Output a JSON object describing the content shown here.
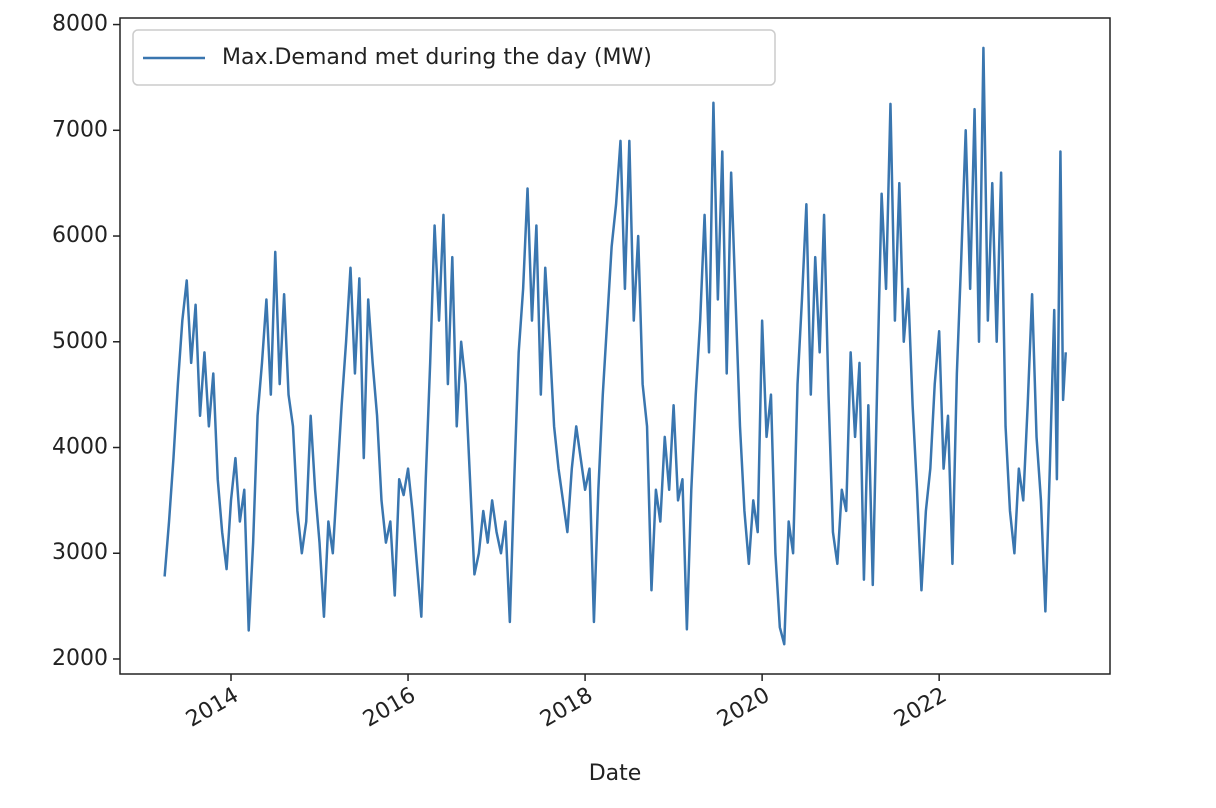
{
  "chart_data": {
    "type": "line",
    "xlabel": "Date",
    "x": [
      2013.25,
      2013.3,
      2013.35,
      2013.4,
      2013.45,
      2013.5,
      2013.55,
      2013.6,
      2013.65,
      2013.7,
      2013.75,
      2013.8,
      2013.85,
      2013.9,
      2013.95,
      2014.0,
      2014.05,
      2014.1,
      2014.15,
      2014.2,
      2014.25,
      2014.3,
      2014.35,
      2014.4,
      2014.45,
      2014.5,
      2014.55,
      2014.6,
      2014.65,
      2014.7,
      2014.75,
      2014.8,
      2014.85,
      2014.9,
      2014.95,
      2015.0,
      2015.05,
      2015.1,
      2015.15,
      2015.2,
      2015.25,
      2015.3,
      2015.35,
      2015.4,
      2015.45,
      2015.5,
      2015.55,
      2015.6,
      2015.65,
      2015.7,
      2015.75,
      2015.8,
      2015.85,
      2015.9,
      2015.95,
      2016.0,
      2016.05,
      2016.1,
      2016.15,
      2016.2,
      2016.25,
      2016.3,
      2016.35,
      2016.4,
      2016.45,
      2016.5,
      2016.55,
      2016.6,
      2016.65,
      2016.7,
      2016.75,
      2016.8,
      2016.85,
      2016.9,
      2016.95,
      2017.0,
      2017.05,
      2017.1,
      2017.15,
      2017.2,
      2017.25,
      2017.3,
      2017.35,
      2017.4,
      2017.45,
      2017.5,
      2017.55,
      2017.6,
      2017.65,
      2017.7,
      2017.75,
      2017.8,
      2017.85,
      2017.9,
      2017.95,
      2018.0,
      2018.05,
      2018.1,
      2018.15,
      2018.2,
      2018.25,
      2018.3,
      2018.35,
      2018.4,
      2018.45,
      2018.5,
      2018.55,
      2018.6,
      2018.65,
      2018.7,
      2018.75,
      2018.8,
      2018.85,
      2018.9,
      2018.95,
      2019.0,
      2019.05,
      2019.1,
      2019.15,
      2019.2,
      2019.25,
      2019.3,
      2019.35,
      2019.4,
      2019.45,
      2019.5,
      2019.55,
      2019.6,
      2019.65,
      2019.7,
      2019.75,
      2019.8,
      2019.85,
      2019.9,
      2019.95,
      2020.0,
      2020.05,
      2020.1,
      2020.15,
      2020.2,
      2020.25,
      2020.3,
      2020.35,
      2020.4,
      2020.45,
      2020.5,
      2020.55,
      2020.6,
      2020.65,
      2020.7,
      2020.75,
      2020.8,
      2020.85,
      2020.9,
      2020.95,
      2021.0,
      2021.05,
      2021.1,
      2021.15,
      2021.2,
      2021.25,
      2021.3,
      2021.35,
      2021.4,
      2021.45,
      2021.5,
      2021.55,
      2021.6,
      2021.65,
      2021.7,
      2021.75,
      2021.8,
      2021.85,
      2021.9,
      2021.95,
      2022.0,
      2022.05,
      2022.1,
      2022.15,
      2022.2,
      2022.25,
      2022.3,
      2022.35,
      2022.4,
      2022.45,
      2022.5,
      2022.55,
      2022.6,
      2022.65,
      2022.7,
      2022.75,
      2022.8,
      2022.85,
      2022.9,
      2022.95,
      2023.0,
      2023.05,
      2023.1,
      2023.15,
      2023.2,
      2023.25,
      2023.3,
      2023.33,
      2023.37,
      2023.4,
      2023.43
    ],
    "series": [
      {
        "name": "Max.Demand met during the day (MW)",
        "color": "#3a76af",
        "values": [
          2780,
          3300,
          3900,
          4600,
          5200,
          5580,
          4800,
          5350,
          4300,
          4900,
          4200,
          4700,
          3700,
          3200,
          2850,
          3500,
          3900,
          3300,
          3600,
          2270,
          3100,
          4300,
          4800,
          5400,
          4500,
          5850,
          4600,
          5450,
          4500,
          4200,
          3400,
          3000,
          3300,
          4300,
          3600,
          3100,
          2400,
          3300,
          3000,
          3700,
          4400,
          5000,
          5700,
          4700,
          5600,
          3900,
          5400,
          4800,
          4300,
          3500,
          3100,
          3300,
          2600,
          3700,
          3550,
          3800,
          3400,
          2900,
          2400,
          3700,
          4800,
          6100,
          5200,
          6200,
          4600,
          5800,
          4200,
          5000,
          4600,
          3700,
          2800,
          3000,
          3400,
          3100,
          3500,
          3200,
          3000,
          3300,
          2350,
          3700,
          4900,
          5500,
          6450,
          5200,
          6100,
          4500,
          5700,
          5000,
          4200,
          3800,
          3500,
          3200,
          3800,
          4200,
          3900,
          3600,
          3800,
          2350,
          3600,
          4500,
          5200,
          5900,
          6300,
          6900,
          5500,
          6900,
          5200,
          6000,
          4600,
          4200,
          2650,
          3600,
          3300,
          4100,
          3600,
          4400,
          3500,
          3700,
          2280,
          3600,
          4500,
          5200,
          6200,
          4900,
          7260,
          5400,
          6800,
          4700,
          6600,
          5400,
          4200,
          3400,
          2900,
          3500,
          3200,
          5200,
          4100,
          4500,
          3000,
          2300,
          2140,
          3300,
          3000,
          4600,
          5400,
          6300,
          4500,
          5800,
          4900,
          6200,
          4500,
          3200,
          2900,
          3600,
          3400,
          4900,
          4100,
          4800,
          2750,
          4400,
          2700,
          4600,
          6400,
          5500,
          7250,
          5200,
          6500,
          5000,
          5500,
          4400,
          3600,
          2650,
          3400,
          3800,
          4600,
          5100,
          3800,
          4300,
          2900,
          4700,
          5800,
          7000,
          5500,
          7200,
          5000,
          7780,
          5200,
          6500,
          5000,
          6600,
          4200,
          3400,
          3000,
          3800,
          3500,
          4400,
          5450,
          4100,
          3500,
          2450,
          3800,
          5300,
          3700,
          6800,
          4450,
          4900
        ]
      }
    ],
    "xlim": [
      2012.746,
      2023.93
    ],
    "xticks": [
      2014,
      2016,
      2018,
      2020,
      2022
    ],
    "ylim": [
      1858,
      8062
    ],
    "yticks": [
      2000,
      3000,
      4000,
      5000,
      6000,
      7000,
      8000
    ],
    "legend": "upper left",
    "grid": false
  }
}
